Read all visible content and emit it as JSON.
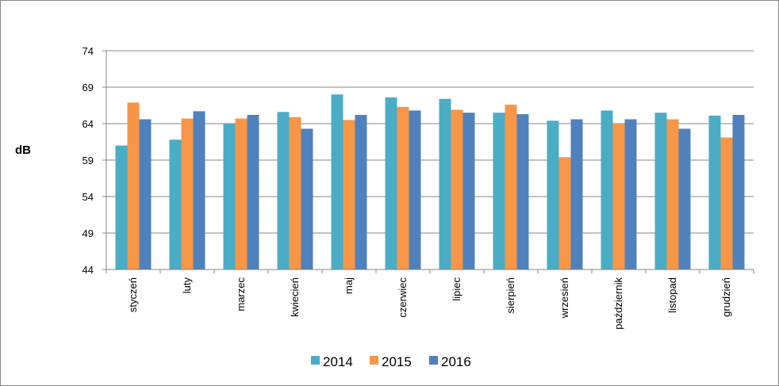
{
  "chart_data": {
    "type": "bar",
    "ylabel": "dB",
    "ylim": [
      44,
      74
    ],
    "yticks": [
      44,
      49,
      54,
      59,
      64,
      69,
      74
    ],
    "grid": true,
    "legend_position": "bottom",
    "categories": [
      "styczeń",
      "luty",
      "marzec",
      "kwiecień",
      "maj",
      "czerwiec",
      "lipiec",
      "sierpień",
      "wrzesień",
      "październik",
      "listopad",
      "grudzień"
    ],
    "series": [
      {
        "name": "2014",
        "color": "#4BACC6",
        "values": [
          61.0,
          61.8,
          64.0,
          65.6,
          68.0,
          67.6,
          67.4,
          65.5,
          64.4,
          65.8,
          65.5,
          65.1
        ]
      },
      {
        "name": "2015",
        "color": "#F79646",
        "values": [
          66.9,
          64.7,
          64.7,
          64.9,
          64.5,
          66.3,
          65.9,
          66.6,
          59.4,
          64.0,
          64.6,
          62.1
        ]
      },
      {
        "name": "2016",
        "color": "#4F81BD",
        "values": [
          64.6,
          65.7,
          65.2,
          63.3,
          65.2,
          65.8,
          65.5,
          65.3,
          64.6,
          64.6,
          63.3,
          65.2
        ]
      }
    ]
  }
}
